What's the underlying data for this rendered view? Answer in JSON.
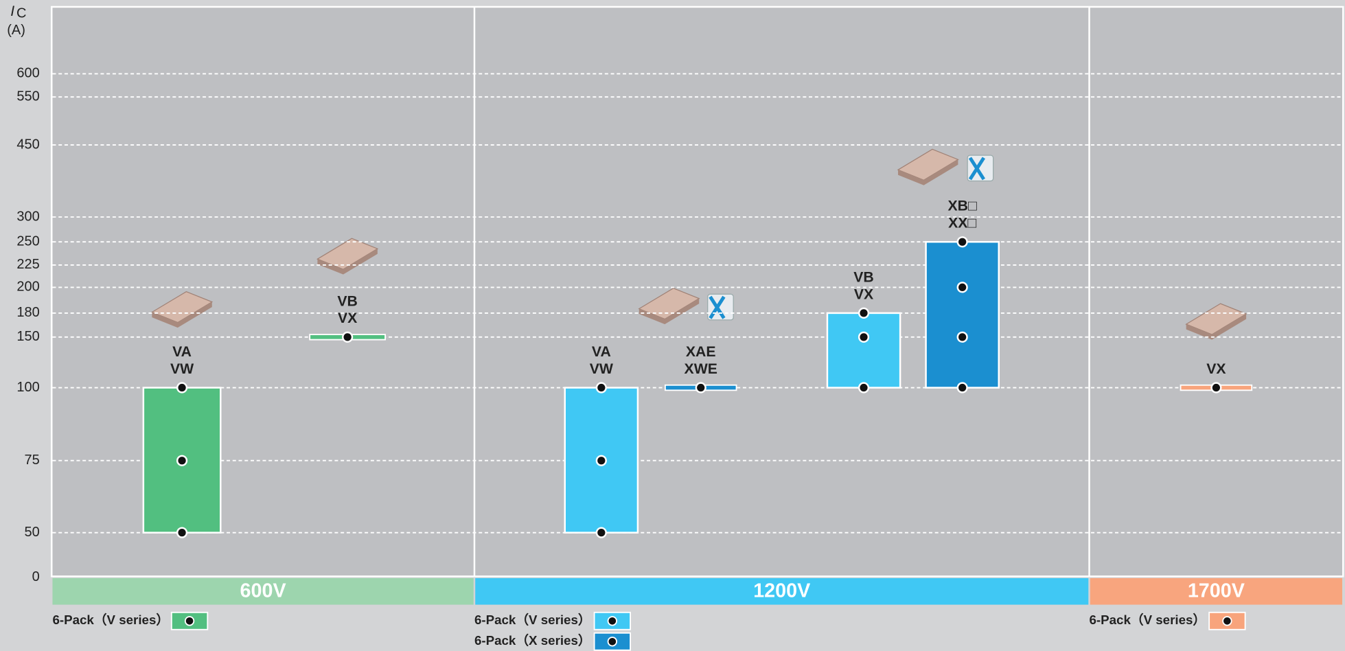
{
  "chart_data": {
    "type": "range_bar",
    "y_label_symbol": "I",
    "y_label_sub": "C",
    "y_unit": "(A)",
    "yticks": [
      0,
      50,
      75,
      100,
      150,
      180,
      200,
      225,
      250,
      300,
      450,
      550,
      600
    ],
    "grid": true,
    "groups": [
      {
        "name": "600V",
        "band_color": "#9dd5ae",
        "legend": [
          {
            "name": "6-Pack（V series）",
            "color": "#52bf80"
          }
        ],
        "items": [
          {
            "label": [
              "VA",
              "VW"
            ],
            "series": 0,
            "values": [
              50,
              75,
              100
            ]
          },
          {
            "label": [
              "VB",
              "VX"
            ],
            "series": 0,
            "values": [
              150
            ]
          }
        ]
      },
      {
        "name": "1200V",
        "band_color": "#40c8f4",
        "legend": [
          {
            "name": "6-Pack（V series）",
            "color": "#40c8f4"
          },
          {
            "name": "6-Pack（X series）",
            "color": "#1b8fd0"
          }
        ],
        "items": [
          {
            "label": [
              "VA",
              "VW"
            ],
            "series": 0,
            "values": [
              50,
              75,
              100
            ]
          },
          {
            "label": [
              "XAE",
              "XWE"
            ],
            "series": 1,
            "values": [
              100
            ]
          },
          {
            "label": [
              "VB",
              "VX"
            ],
            "series": 0,
            "values": [
              100,
              150,
              180
            ]
          },
          {
            "label": [
              "XB□",
              "XX□"
            ],
            "series": 1,
            "values": [
              100,
              150,
              200,
              250
            ]
          }
        ]
      },
      {
        "name": "1700V",
        "band_color": "#f8a57e",
        "legend": [
          {
            "name": "6-Pack（V series）",
            "color": "#f8a47c"
          }
        ],
        "items": [
          {
            "label": [
              "VX"
            ],
            "series": 0,
            "values": [
              100
            ]
          }
        ]
      }
    ]
  }
}
